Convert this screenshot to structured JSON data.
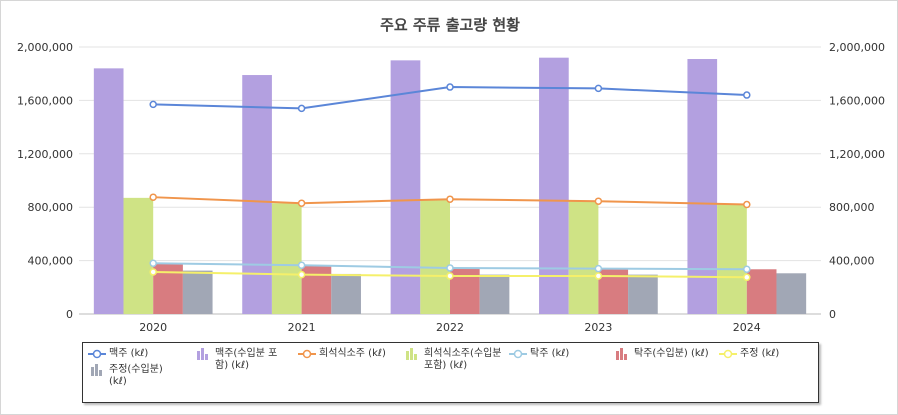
{
  "chart_data": {
    "type": "bar",
    "title": "주요 주류 출고량 현황",
    "categories": [
      "2020",
      "2021",
      "2022",
      "2023",
      "2024"
    ],
    "ylim": [
      0,
      2000000
    ],
    "yticks": [
      "0",
      "400,000",
      "800,000",
      "1,200,000",
      "1,600,000",
      "2,000,000"
    ],
    "grid": true,
    "legend_position": "bottom",
    "series": [
      {
        "name": "맥주 (kℓ)",
        "kind": "line",
        "color": "#5b86d8",
        "values": [
          1570000,
          1540000,
          1700000,
          1690000,
          1640000
        ]
      },
      {
        "name": "맥주(수입분 포함) (kℓ)",
        "kind": "bar",
        "color": "#b3a0e0",
        "values": [
          1840000,
          1790000,
          1900000,
          1920000,
          1910000
        ]
      },
      {
        "name": "희석식소주 (kℓ)",
        "kind": "line",
        "color": "#f0954c",
        "values": [
          875000,
          830000,
          860000,
          845000,
          820000
        ]
      },
      {
        "name": "희석식소주(수입분 포함) (kℓ)",
        "kind": "bar",
        "color": "#cfe385",
        "values": [
          870000,
          830000,
          860000,
          845000,
          820000
        ]
      },
      {
        "name": "탁주 (kℓ)",
        "kind": "line",
        "color": "#9ecbe3",
        "values": [
          380000,
          365000,
          345000,
          340000,
          335000
        ]
      },
      {
        "name": "탁주(수입분) (kℓ)",
        "kind": "bar",
        "color": "#d87c80",
        "values": [
          380000,
          365000,
          345000,
          340000,
          335000
        ]
      },
      {
        "name": "주정 (kℓ)",
        "kind": "line",
        "color": "#f5f06a",
        "values": [
          315000,
          295000,
          285000,
          285000,
          275000
        ]
      },
      {
        "name": "주정(수입분) (kℓ)",
        "kind": "bar",
        "color": "#a1a7b5",
        "values": [
          325000,
          300000,
          295000,
          295000,
          305000
        ]
      }
    ]
  }
}
